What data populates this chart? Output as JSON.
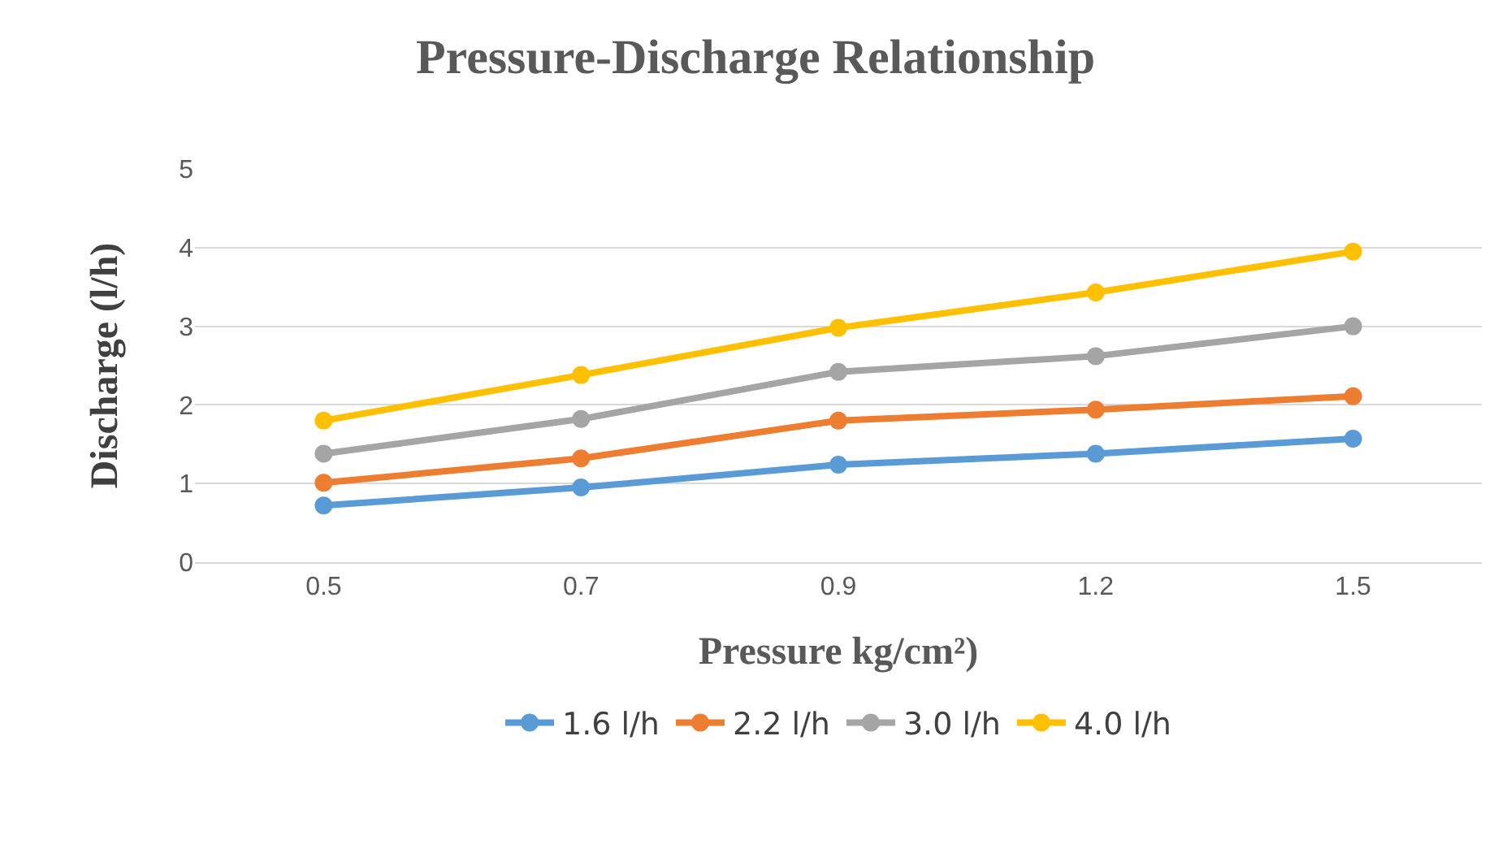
{
  "chart_data": {
    "type": "line",
    "title": "Pressure-Discharge Relationship",
    "xlabel": "Pressure kg/cm²)",
    "ylabel": "Discharge (l/h)",
    "categories": [
      "0.5",
      "0.7",
      "0.9",
      "1.2",
      "1.5"
    ],
    "series": [
      {
        "name": "1.6 l/h",
        "color": "#5b9bd5",
        "values": [
          0.72,
          0.95,
          1.24,
          1.38,
          1.57
        ]
      },
      {
        "name": "2.2 l/h",
        "color": "#ed7d31",
        "values": [
          1.01,
          1.32,
          1.8,
          1.94,
          2.11
        ]
      },
      {
        "name": "3.0 l/h",
        "color": "#a5a5a5",
        "values": [
          1.38,
          1.82,
          2.42,
          2.62,
          3.0
        ]
      },
      {
        "name": "4.0 l/h",
        "color": "#ffc000",
        "values": [
          1.8,
          2.38,
          2.98,
          3.43,
          3.95
        ]
      }
    ],
    "ylim": [
      0,
      5
    ],
    "yticks": [
      0,
      1,
      2,
      3,
      4,
      5
    ],
    "grid": "y",
    "legend": "bottom",
    "marker": "circle",
    "line_style": "solid"
  }
}
